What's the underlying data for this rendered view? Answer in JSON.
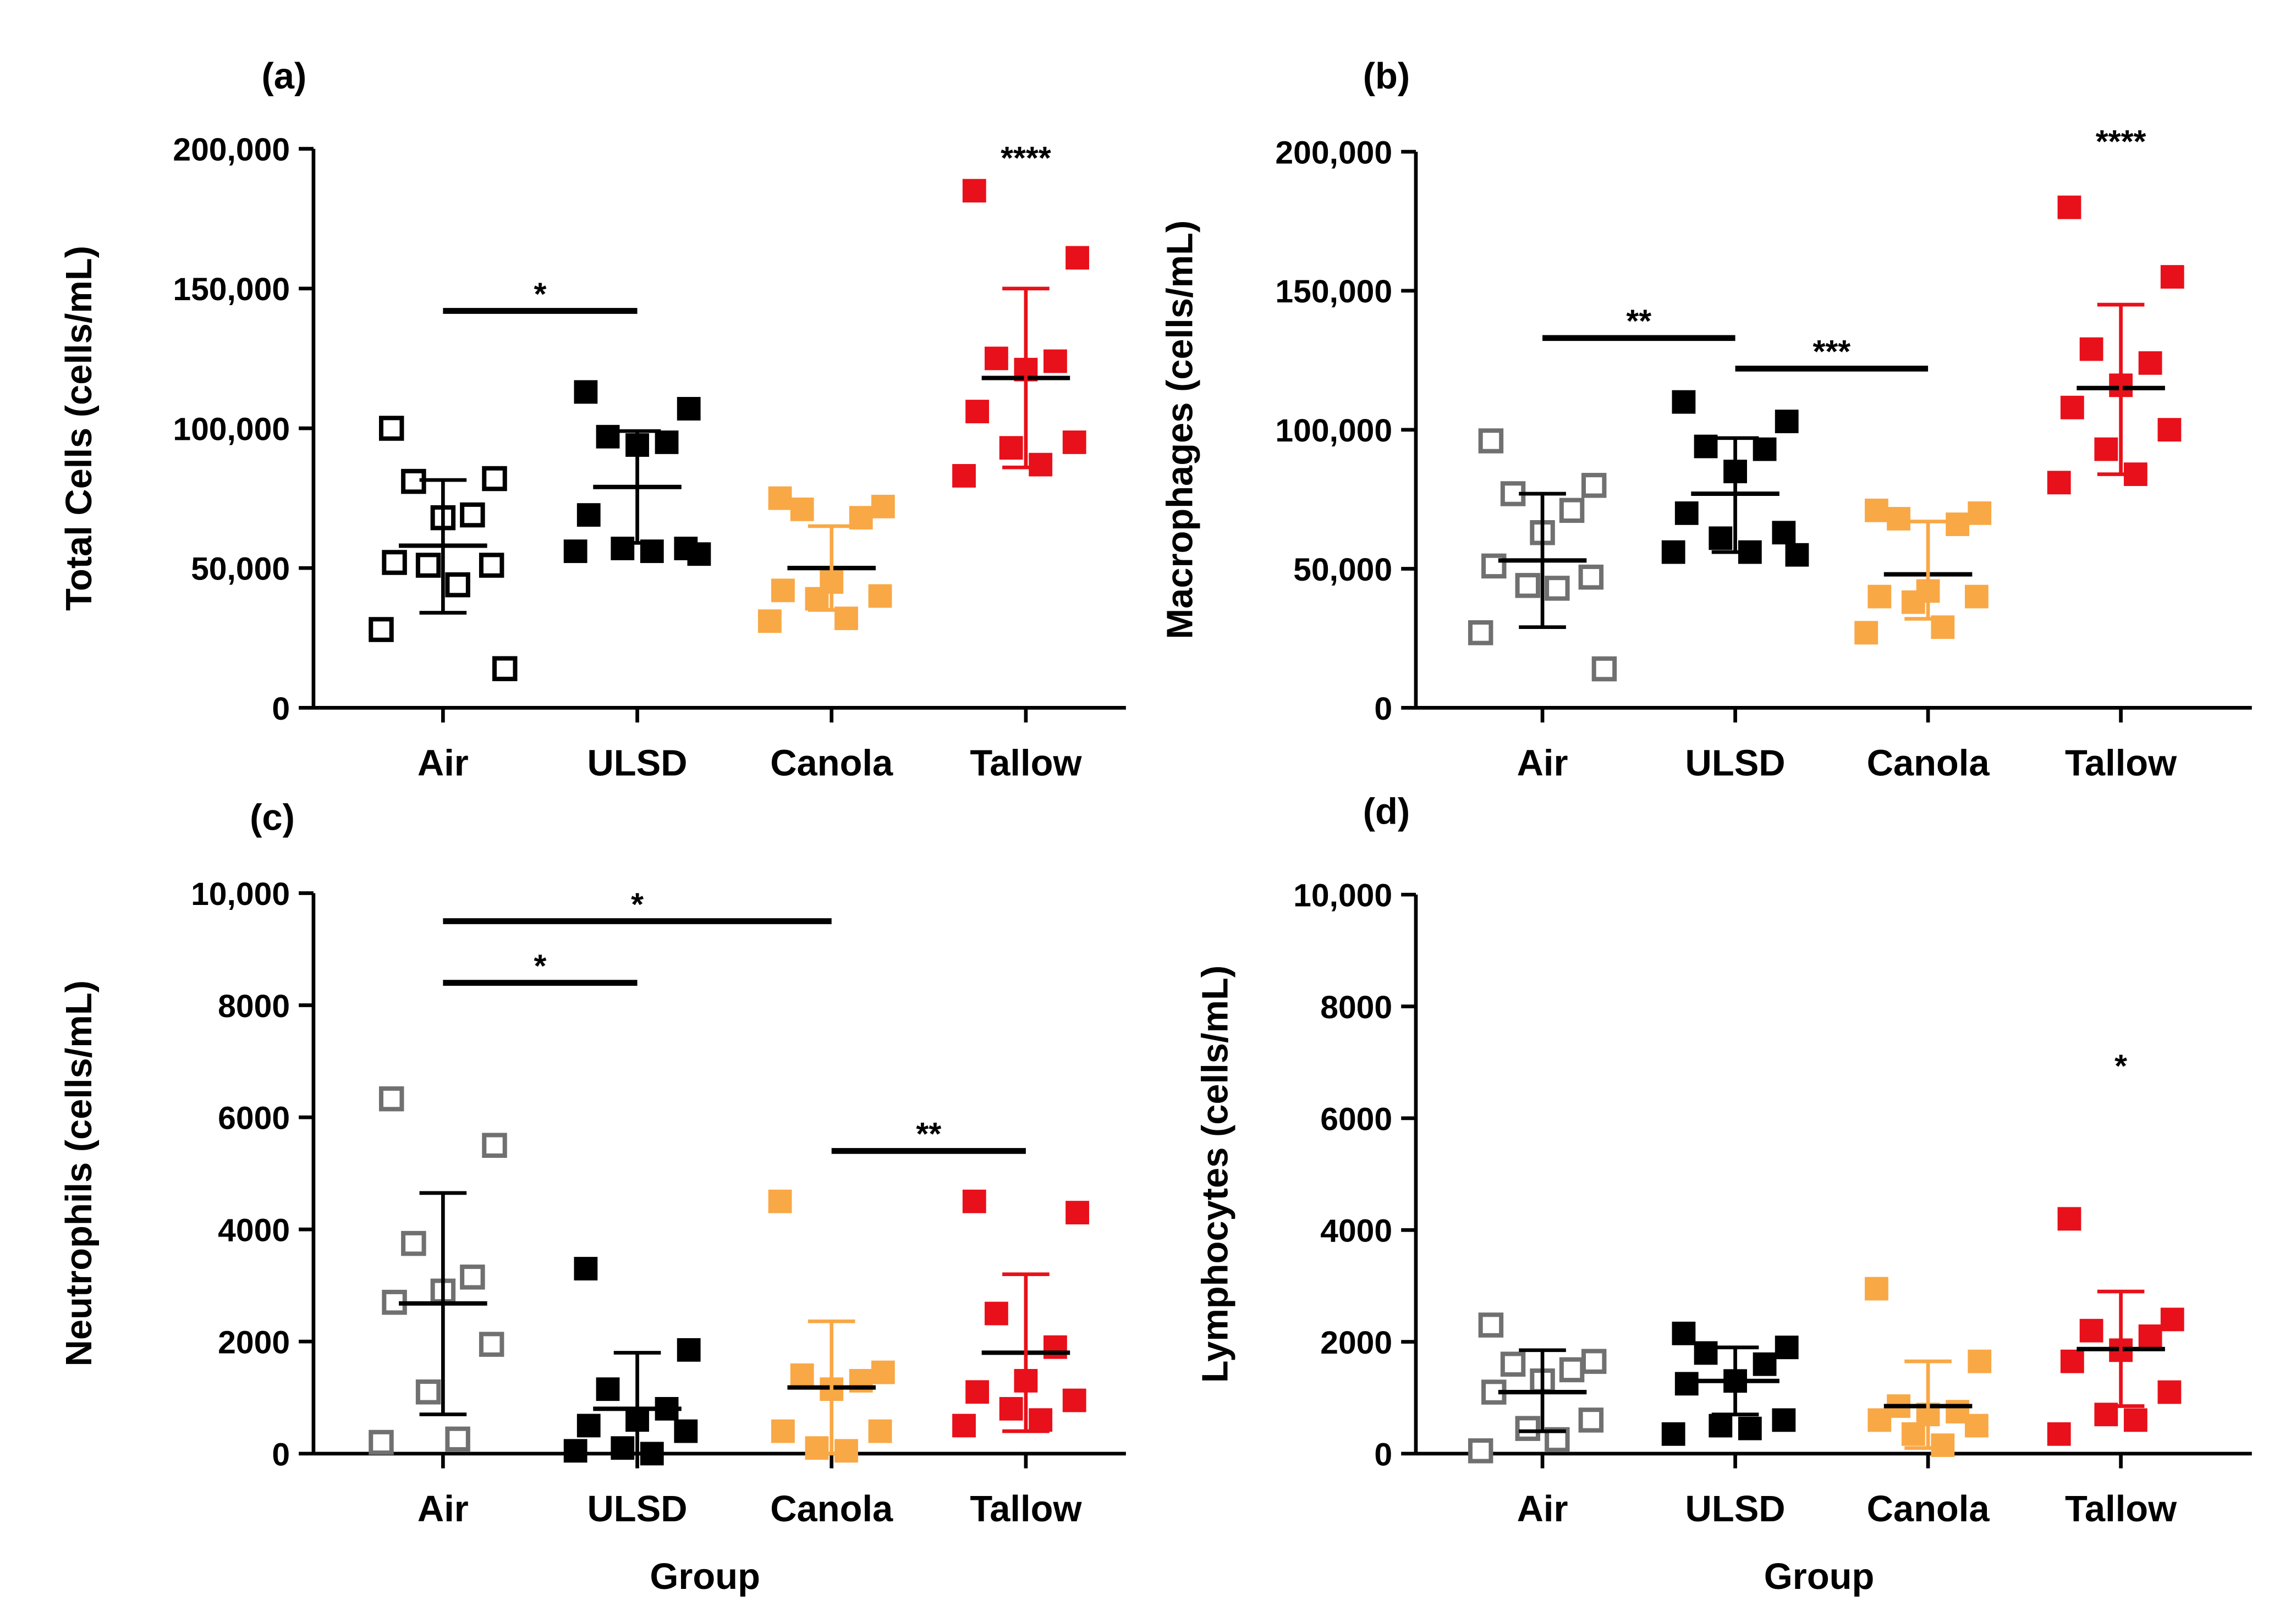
{
  "chart_data": [
    {
      "type": "scatter",
      "panel_label": "(a)",
      "ylabel": "Total Cells (cells/mL)",
      "xlabel": "",
      "ylim": [
        0,
        200000
      ],
      "yticks": [
        0,
        50000,
        100000,
        150000,
        200000
      ],
      "ytick_labels": [
        "0",
        "50,000",
        "100,000",
        "150,000",
        "200,000"
      ],
      "categories": [
        "Air",
        "ULSD",
        "Canola",
        "Tallow"
      ],
      "series": [
        {
          "name": "Air",
          "values": [
            100000,
            82000,
            81000,
            69000,
            68000,
            52000,
            51000,
            51000,
            44000,
            28000,
            14000
          ],
          "mean": 58000,
          "sd": [
            34000,
            81500
          ]
        },
        {
          "name": "ULSD",
          "values": [
            113000,
            107000,
            97000,
            95000,
            94000,
            69000,
            57000,
            57000,
            56000,
            56000,
            55000
          ],
          "mean": 79000,
          "sd": [
            59000,
            99000
          ]
        },
        {
          "name": "Canola",
          "values": [
            75000,
            72000,
            71000,
            68000,
            45000,
            42000,
            40000,
            39000,
            32000,
            31000
          ],
          "mean": 50000,
          "sd": [
            35000,
            65000
          ]
        },
        {
          "name": "Tallow",
          "values": [
            185000,
            161000,
            125000,
            124000,
            121000,
            106000,
            95000,
            93000,
            87000,
            83000
          ],
          "mean": 118000,
          "sd": [
            86000,
            150000
          ]
        }
      ],
      "significance": [
        {
          "from": "Air",
          "to": "ULSD",
          "y": 142000,
          "label": "*"
        },
        {
          "from": "Tallow",
          "to": "Tallow",
          "y": 198000,
          "label": "****"
        }
      ]
    },
    {
      "type": "scatter",
      "panel_label": "(b)",
      "ylabel": "Macrophages (cells/mL)",
      "xlabel": "",
      "ylim": [
        0,
        200000
      ],
      "yticks": [
        0,
        50000,
        100000,
        150000,
        200000
      ],
      "ytick_labels": [
        "0",
        "50,000",
        "100,000",
        "150,000",
        "200,000"
      ],
      "categories": [
        "Air",
        "ULSD",
        "Canola",
        "Tallow"
      ],
      "series": [
        {
          "name": "Air",
          "values": [
            96000,
            80000,
            77000,
            71000,
            63000,
            51000,
            47000,
            44000,
            43000,
            27000,
            14000
          ],
          "mean": 53000,
          "sd": [
            29000,
            77000
          ]
        },
        {
          "name": "ULSD",
          "values": [
            110000,
            103000,
            94000,
            93000,
            85000,
            70000,
            63000,
            61000,
            56000,
            56000,
            55000
          ],
          "mean": 77000,
          "sd": [
            56000,
            97000
          ]
        },
        {
          "name": "Canola",
          "values": [
            71000,
            70000,
            68000,
            66000,
            42000,
            40000,
            40000,
            38000,
            29000,
            27000
          ],
          "mean": 48000,
          "sd": [
            32000,
            67000
          ]
        },
        {
          "name": "Tallow",
          "values": [
            180000,
            155000,
            129000,
            124000,
            116000,
            108000,
            100000,
            93000,
            84000,
            81000
          ],
          "mean": 115000,
          "sd": [
            84000,
            145000
          ]
        }
      ],
      "significance": [
        {
          "from": "Air",
          "to": "ULSD",
          "y": 133000,
          "label": "**"
        },
        {
          "from": "ULSD",
          "to": "Canola",
          "y": 122000,
          "label": "***"
        },
        {
          "from": "Tallow",
          "to": "Tallow",
          "y": 205000,
          "label": "****"
        }
      ]
    },
    {
      "type": "scatter",
      "panel_label": "(c)",
      "ylabel": "Neutrophils (cells/mL)",
      "xlabel": "Group",
      "ylim": [
        0,
        10000
      ],
      "yticks": [
        0,
        2000,
        4000,
        6000,
        8000,
        10000
      ],
      "ytick_labels": [
        "0",
        "2000",
        "4000",
        "6000",
        "8000",
        "10,000"
      ],
      "categories": [
        "Air",
        "ULSD",
        "Canola",
        "Tallow"
      ],
      "series": [
        {
          "name": "Air",
          "values": [
            6330,
            5500,
            3750,
            3150,
            2900,
            2700,
            1950,
            1100,
            260,
            200
          ],
          "mean": 2680,
          "sd": [
            700,
            4650
          ]
        },
        {
          "name": "ULSD",
          "values": [
            3300,
            1850,
            1150,
            800,
            600,
            500,
            400,
            100,
            0,
            50
          ],
          "mean": 800,
          "sd": [
            0,
            1800
          ]
        },
        {
          "name": "Canola",
          "values": [
            4500,
            1450,
            1400,
            1300,
            1150,
            400,
            400,
            100,
            50
          ],
          "mean": 1180,
          "sd": [
            0,
            2360
          ]
        },
        {
          "name": "Tallow",
          "values": [
            4500,
            4300,
            2500,
            1900,
            1300,
            1100,
            950,
            800,
            600,
            500
          ],
          "mean": 1800,
          "sd": [
            400,
            3200
          ]
        }
      ],
      "significance": [
        {
          "from": "Air",
          "to": "Canola",
          "y": 9500,
          "label": "*"
        },
        {
          "from": "Air",
          "to": "ULSD",
          "y": 8400,
          "label": "*"
        },
        {
          "from": "Canola",
          "to": "Tallow",
          "y": 5400,
          "label": "**"
        }
      ]
    },
    {
      "type": "scatter",
      "panel_label": "(d)",
      "ylabel": "Lymphocytes (cells/mL)",
      "xlabel": "Group",
      "ylim": [
        0,
        10000
      ],
      "yticks": [
        0,
        2000,
        4000,
        6000,
        8000,
        10000
      ],
      "ytick_labels": [
        "0",
        "2000",
        "4000",
        "6000",
        "8000",
        "10,000"
      ],
      "categories": [
        "Air",
        "ULSD",
        "Canola",
        "Tallow"
      ],
      "series": [
        {
          "name": "Air",
          "values": [
            2300,
            1650,
            1600,
            1500,
            1300,
            1100,
            600,
            450,
            250,
            50
          ],
          "mean": 1100,
          "sd": [
            400,
            1850
          ]
        },
        {
          "name": "ULSD",
          "values": [
            2150,
            1900,
            1800,
            1600,
            1300,
            1250,
            600,
            500,
            450,
            350
          ],
          "mean": 1300,
          "sd": [
            700,
            1900
          ]
        },
        {
          "name": "Canola",
          "values": [
            2950,
            1650,
            850,
            750,
            700,
            600,
            500,
            350,
            150
          ],
          "mean": 850,
          "sd": [
            100,
            1650
          ]
        },
        {
          "name": "Tallow",
          "values": [
            4200,
            2400,
            2200,
            2100,
            1850,
            1650,
            1100,
            700,
            600,
            350
          ],
          "mean": 1870,
          "sd": [
            850,
            2900
          ]
        }
      ],
      "significance": [
        {
          "from": "Tallow",
          "to": "Tallow",
          "y": 7000,
          "label": "*"
        }
      ]
    }
  ],
  "styles": {
    "Air": {
      "color": "#000000",
      "alt_color": "#707070",
      "open": true
    },
    "ULSD": {
      "color": "#000000",
      "open": false
    },
    "Canola": {
      "color": "#f9a846",
      "open": false
    },
    "Tallow": {
      "color": "#e8101a",
      "open": false
    }
  }
}
